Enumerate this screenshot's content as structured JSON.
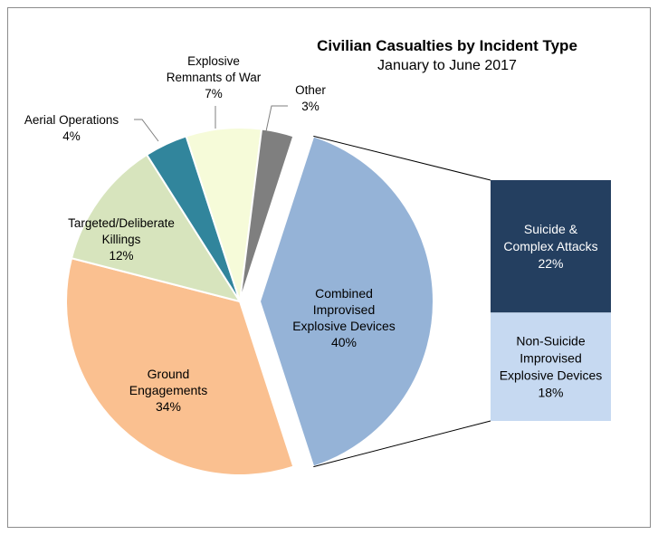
{
  "chart_data": {
    "type": "pie",
    "title": "Civilian Casualties by Incident Type",
    "subtitle": "January to June 2017",
    "slices": [
      {
        "label": "Combined Improvised Explosive Devices",
        "value_label": "40%",
        "value": 40,
        "color": "#95b3d7",
        "exploded": true
      },
      {
        "label": "Ground Engagements",
        "value_label": "34%",
        "value": 34,
        "color": "#fac090"
      },
      {
        "label": "Targeted/Deliberate Killings",
        "value_label": "12%",
        "value": 12,
        "color": "#d7e4bd"
      },
      {
        "label": "Aerial Operations",
        "value_label": "4%",
        "value": 4,
        "color": "#31859c"
      },
      {
        "label": "Explosive Remnants of War",
        "value_label": "7%",
        "value": 7,
        "color": "#f6fbd9"
      },
      {
        "label": "Other",
        "value_label": "3%",
        "value": 3,
        "color": "#7f7f7f"
      }
    ],
    "breakdown": {
      "parent": "Combined Improvised Explosive Devices",
      "segments": [
        {
          "label": "Suicide & Complex Attacks",
          "value_label": "22%",
          "value": 22,
          "color": "#243f60",
          "text_color": "#ffffff"
        },
        {
          "label": "Non-Suicide Improvised Explosive Devices",
          "value_label": "18%",
          "value": 18,
          "color": "#c6d9f1",
          "text_color": "#000000"
        }
      ]
    }
  }
}
